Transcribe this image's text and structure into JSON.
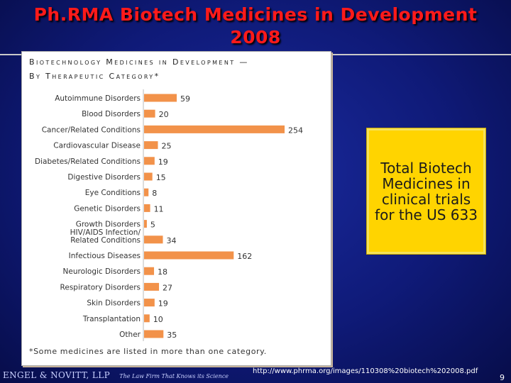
{
  "slide": {
    "title_line1": "Ph.RMA Biotech Medicines in Development",
    "title_line2": "2008",
    "callout": "Total Biotech Medicines in clinical trials for the US 633",
    "firm_name": "ENGEL & NOVITT, LLP",
    "firm_tagline": "The Law Firm That Knows its Science",
    "source_url": "http://www.phrma.org/images/110308%20biotech%202008.pdf",
    "page_number": "9"
  },
  "colors": {
    "bar": "#f2924a",
    "title": "#ff1a1a",
    "callout_bg": "#ffd400"
  },
  "chart_data": {
    "type": "bar",
    "orientation": "horizontal",
    "title_line1": "Biotechnology Medicines in Development —",
    "title_line2": "By Therapeutic Category*",
    "footnote": "*Some medicines are listed in more than one category.",
    "categories": [
      [
        "Autoimmune Disorders"
      ],
      [
        "Blood Disorders"
      ],
      [
        "Cancer/Related Conditions"
      ],
      [
        "Cardiovascular Disease"
      ],
      [
        "Diabetes/Related Conditions"
      ],
      [
        "Digestive Disorders"
      ],
      [
        "Eye Conditions"
      ],
      [
        "Genetic Disorders"
      ],
      [
        "Growth Disorders"
      ],
      [
        "HIV/AIDS Infection/",
        "Related Conditions"
      ],
      [
        "Infectious Diseases"
      ],
      [
        "Neurologic Disorders"
      ],
      [
        "Respiratory Disorders"
      ],
      [
        "Skin Disorders"
      ],
      [
        "Transplantation"
      ],
      [
        "Other"
      ]
    ],
    "values": [
      59,
      20,
      254,
      25,
      19,
      15,
      8,
      11,
      5,
      34,
      162,
      18,
      27,
      19,
      10,
      35
    ],
    "xlim": [
      0,
      254
    ],
    "grid": false,
    "legend": "none"
  }
}
